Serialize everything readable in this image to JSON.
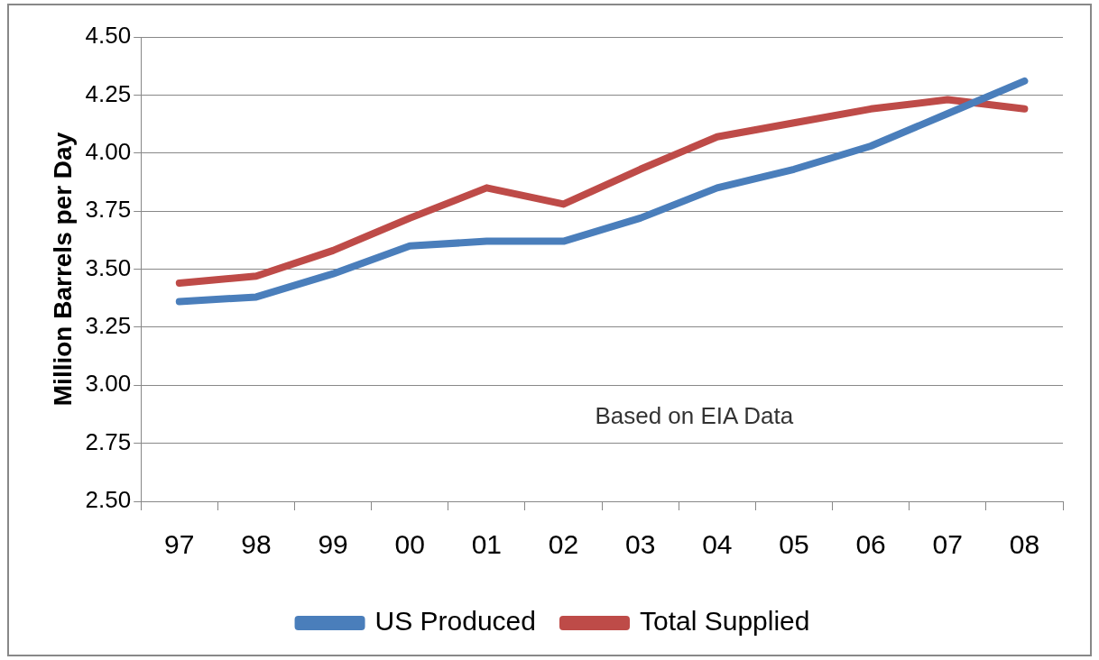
{
  "chart_data": {
    "type": "line",
    "ylabel": "Million Barrels per Day",
    "categories": [
      "97",
      "98",
      "99",
      "00",
      "01",
      "02",
      "03",
      "04",
      "05",
      "06",
      "07",
      "08"
    ],
    "series": [
      {
        "name": "US Produced",
        "color": "#4a7ebb",
        "values": [
          3.36,
          3.38,
          3.48,
          3.6,
          3.62,
          3.62,
          3.72,
          3.85,
          3.93,
          4.03,
          4.17,
          4.31
        ]
      },
      {
        "name": "Total Supplied",
        "color": "#be4b48",
        "values": [
          3.44,
          3.47,
          3.58,
          3.72,
          3.85,
          3.78,
          3.93,
          4.07,
          4.13,
          4.19,
          4.23,
          4.19
        ]
      }
    ],
    "ylim": [
      2.5,
      4.5
    ],
    "yticks": [
      {
        "value": 2.5,
        "label": "2.50"
      },
      {
        "value": 2.75,
        "label": "2.75"
      },
      {
        "value": 3,
        "label": "3.00"
      },
      {
        "value": 3.25,
        "label": "3.25"
      },
      {
        "value": 3.5,
        "label": "3.50"
      },
      {
        "value": 3.75,
        "label": "3.75"
      },
      {
        "value": 4,
        "label": "4.00"
      },
      {
        "value": 4.25,
        "label": "4.25"
      },
      {
        "value": 4.5,
        "label": "4.50"
      }
    ],
    "grid": "y",
    "legend": "bottom",
    "marker": "none",
    "line_style": "solid",
    "annotations": [
      "Based on EIA Data"
    ]
  }
}
